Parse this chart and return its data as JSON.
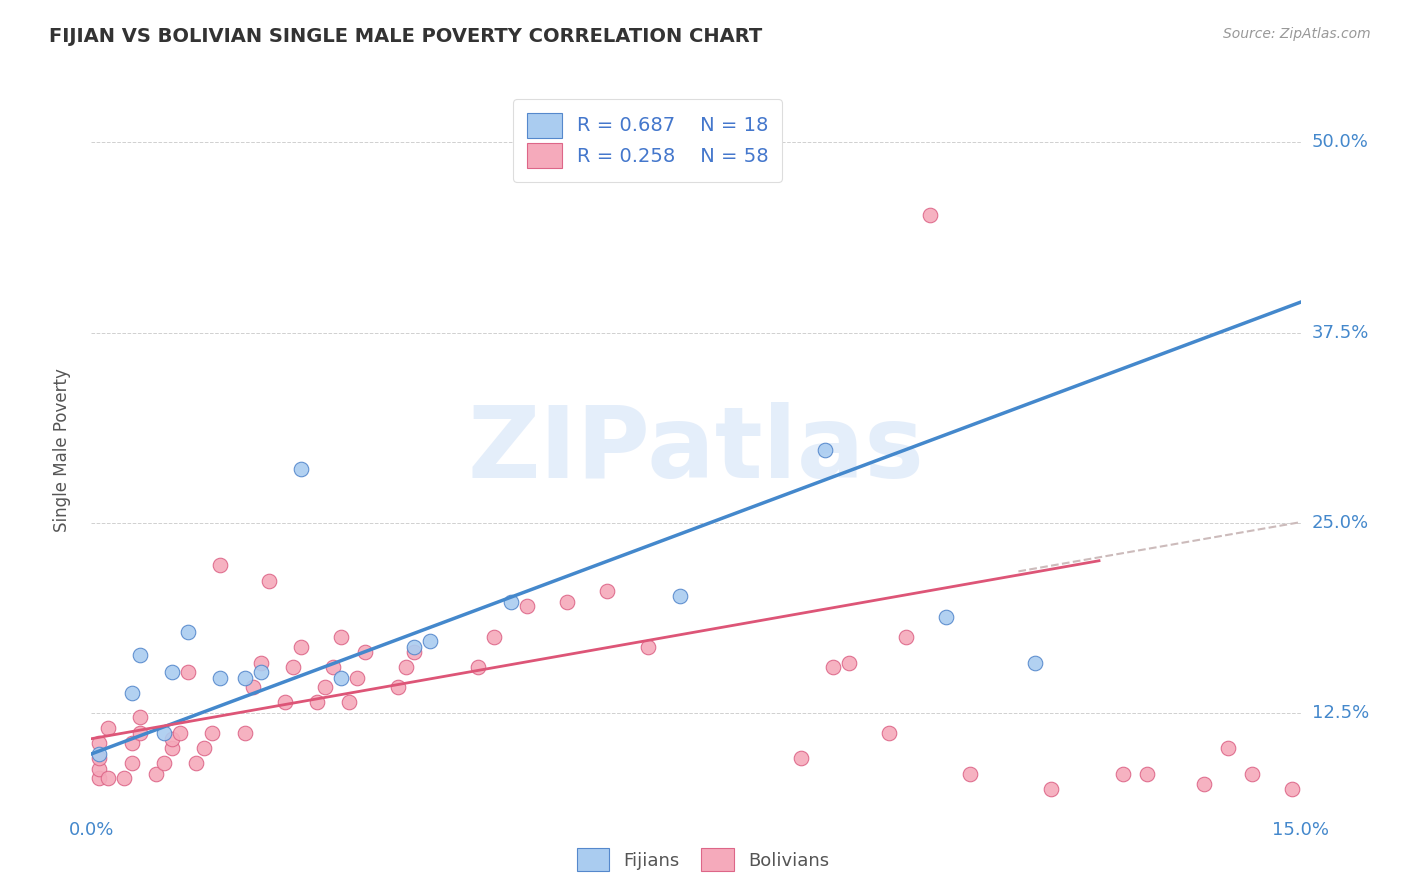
{
  "title": "FIJIAN VS BOLIVIAN SINGLE MALE POVERTY CORRELATION CHART",
  "source": "Source: ZipAtlas.com",
  "ylabel": "Single Male Poverty",
  "xlim": [
    0.0,
    0.15
  ],
  "ylim": [
    0.06,
    0.535
  ],
  "y_ticks": [
    0.125,
    0.25,
    0.375,
    0.5
  ],
  "y_tick_labels": [
    "12.5%",
    "25.0%",
    "37.5%",
    "50.0%"
  ],
  "fijian_R": 0.687,
  "fijian_N": 18,
  "bolivian_R": 0.258,
  "bolivian_N": 58,
  "fijian_color": "#aaccf0",
  "bolivian_color": "#f5aabb",
  "fijian_edge_color": "#5588cc",
  "bolivian_edge_color": "#dd6688",
  "fijian_line_color": "#4488cc",
  "bolivian_line_color": "#dd5577",
  "dashed_line_color": "#ccbbbb",
  "legend_text_color": "#4477cc",
  "title_color": "#333333",
  "axis_label_color": "#555555",
  "tick_color": "#4488cc",
  "grid_color": "#d0d0d0",
  "watermark": "ZIPatlas",
  "fijian_line_x": [
    0.0,
    0.15
  ],
  "fijian_line_y": [
    0.098,
    0.395
  ],
  "bolivian_line_x": [
    0.0,
    0.125
  ],
  "bolivian_line_y": [
    0.108,
    0.225
  ],
  "dashed_line_x": [
    0.115,
    0.155
  ],
  "dashed_line_y": [
    0.218,
    0.255
  ],
  "fijian_x": [
    0.001,
    0.005,
    0.006,
    0.009,
    0.01,
    0.012,
    0.016,
    0.019,
    0.021,
    0.026,
    0.031,
    0.04,
    0.042,
    0.052,
    0.073,
    0.091,
    0.106,
    0.117
  ],
  "fijian_y": [
    0.098,
    0.138,
    0.163,
    0.112,
    0.152,
    0.178,
    0.148,
    0.148,
    0.152,
    0.285,
    0.148,
    0.168,
    0.172,
    0.198,
    0.202,
    0.298,
    0.188,
    0.158
  ],
  "bolivian_x": [
    0.001,
    0.001,
    0.001,
    0.001,
    0.002,
    0.002,
    0.004,
    0.005,
    0.005,
    0.006,
    0.006,
    0.008,
    0.009,
    0.01,
    0.01,
    0.011,
    0.012,
    0.013,
    0.014,
    0.015,
    0.016,
    0.019,
    0.02,
    0.021,
    0.022,
    0.024,
    0.025,
    0.026,
    0.028,
    0.029,
    0.03,
    0.031,
    0.032,
    0.033,
    0.034,
    0.038,
    0.039,
    0.04,
    0.048,
    0.05,
    0.054,
    0.059,
    0.064,
    0.069,
    0.088,
    0.092,
    0.094,
    0.099,
    0.101,
    0.104,
    0.109,
    0.119,
    0.128,
    0.131,
    0.138,
    0.141,
    0.144,
    0.149
  ],
  "bolivian_y": [
    0.082,
    0.088,
    0.095,
    0.105,
    0.082,
    0.115,
    0.082,
    0.092,
    0.105,
    0.112,
    0.122,
    0.085,
    0.092,
    0.102,
    0.108,
    0.112,
    0.152,
    0.092,
    0.102,
    0.112,
    0.222,
    0.112,
    0.142,
    0.158,
    0.212,
    0.132,
    0.155,
    0.168,
    0.132,
    0.142,
    0.155,
    0.175,
    0.132,
    0.148,
    0.165,
    0.142,
    0.155,
    0.165,
    0.155,
    0.175,
    0.195,
    0.198,
    0.205,
    0.168,
    0.095,
    0.155,
    0.158,
    0.112,
    0.175,
    0.452,
    0.085,
    0.075,
    0.085,
    0.085,
    0.078,
    0.102,
    0.085,
    0.075
  ]
}
